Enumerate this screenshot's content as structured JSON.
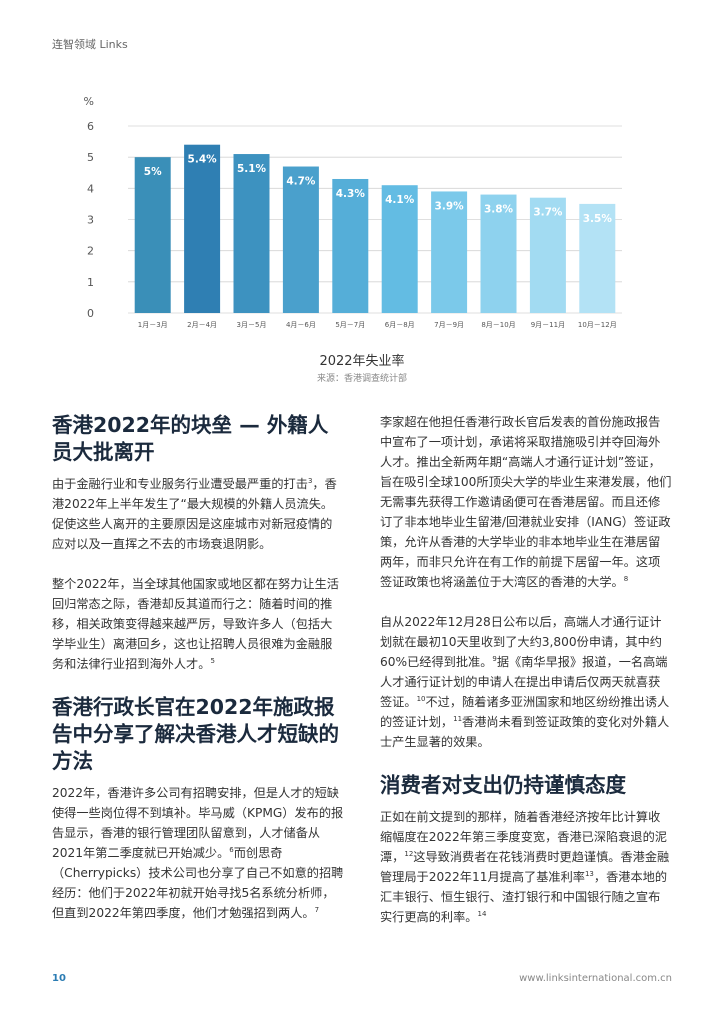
{
  "header": {
    "title": "连智领域 Links"
  },
  "chart_data": {
    "type": "bar",
    "title": "2022年失业率",
    "source": "来源：香港调查统计部",
    "ylabel": "%",
    "ylim": [
      0,
      6
    ],
    "yticks": [
      "0",
      "1",
      "2",
      "3",
      "4",
      "5",
      "6"
    ],
    "grid": true,
    "categories": [
      "1月－3月",
      "2月－4月",
      "3月－5月",
      "4月－6月",
      "5月－7月",
      "6月－8月",
      "7月－9月",
      "8月－10月",
      "9月－11月",
      "10月－12月"
    ],
    "values": [
      5.0,
      5.4,
      5.1,
      4.7,
      4.3,
      4.1,
      3.9,
      3.8,
      3.7,
      3.5
    ],
    "labels": [
      "5%",
      "5.4%",
      "5.1%",
      "4.7%",
      "4.3%",
      "4.1%",
      "3.9%",
      "3.8%",
      "3.7%",
      "3.5%"
    ],
    "colors": [
      "#3a8fb8",
      "#2f7fb3",
      "#3d92c0",
      "#4aa0cc",
      "#55aed8",
      "#63bce3",
      "#7bc9ea",
      "#8ed2ee",
      "#a2dbf2",
      "#b3e2f5"
    ]
  },
  "left": {
    "h1": "香港2022年的块垒 — 外籍人员大批离开",
    "p1": "由于金融行业和专业服务行业遭受最严重的打击",
    "p1_fn": "3",
    "p1b": "，香港2022年上半年发生了“最大规模的外籍人员流失。促使这些人离开的主要原因是这座城市对新冠疫情的应对以及一直挥之不去的市场衰退阴影。",
    "p2": "整个2022年，当全球其他国家或地区都在努力让生活回归常态之际，香港却反其道而行之：随着时间的推移，相关政策变得越来越严厉，导致许多人（包括大学毕业生）离港回乡，这也让招聘人员很难为金融服务和法律行业招到海外人才。",
    "p2_fn": "5",
    "h2": "香港行政长官在2022年施政报告中分享了解决香港人才短缺的方法",
    "p3": "2022年，香港许多公司有招聘安排，但是人才的短缺使得一些岗位得不到填补。毕马威（KPMG）发布的报告显示，香港的银行管理团队留意到，人才储备从2021年第二季度就已开始减少。",
    "p3_fn": "6",
    "p3b": "而创思奇（Cherrypicks）技术公司也分享了自己不如意的招聘经历：他们于2022年初就开始寻找5名系统分析师，但直到2022年第四季度，他们才勉强招到两人。",
    "p3b_fn": "7"
  },
  "right": {
    "p1": "李家超在他担任香港行政长官后发表的首份施政报告中宣布了一项计划，承诺将采取措施吸引并夺回海外人才。推出全新两年期“高端人才通行证计划”签证，旨在吸引全球100所顶尖大学的毕业生来港发展，他们无需事先获得工作邀请函便可在香港居留。而且还修订了非本地毕业生留港/回港就业安排（IANG）签证政策，允许从香港的大学毕业的非本地毕业生在港居留两年，而非只允许在有工作的前提下居留一年。这项签证政策也将涵盖位于大湾区的香港的大学。",
    "p1_fn": "8",
    "p2": "自从2022年12月28日公布以后，高端人才通行证计划就在最初10天里收到了大约3,800份申请，其中约60%已经得到批准。",
    "p2_fn": "9",
    "p2b": "据《南华早报》报道，一名高端人才通行证计划的申请人在提出申请后仅两天就喜获签证。",
    "p2b_fn": "10",
    "p2c": "不过，随着诸多亚洲国家和地区纷纷推出诱人的签证计划，",
    "p2c_fn": "11",
    "p2d": "香港尚未看到签证政策的变化对外籍人士产生显著的效果。",
    "h3": "消费者对支出仍持谨慎态度",
    "p3": "正如在前文提到的那样，随着香港经济按年比计算收缩幅度在2022年第三季度变宽，香港已深陷衰退的泥潭，",
    "p3_fn": "12",
    "p3b": "这导致消费者在花钱消费时更趋谨慎。香港金融管理局于2022年11月提高了基准利率",
    "p3b_fn": "13",
    "p3c": "，香港本地的汇丰银行、恒生银行、渣打银行和中国银行随之宣布实行更高的利率。",
    "p3c_fn": "14"
  },
  "footer": {
    "page": "10",
    "url": "www.linksinternational.com.cn"
  }
}
